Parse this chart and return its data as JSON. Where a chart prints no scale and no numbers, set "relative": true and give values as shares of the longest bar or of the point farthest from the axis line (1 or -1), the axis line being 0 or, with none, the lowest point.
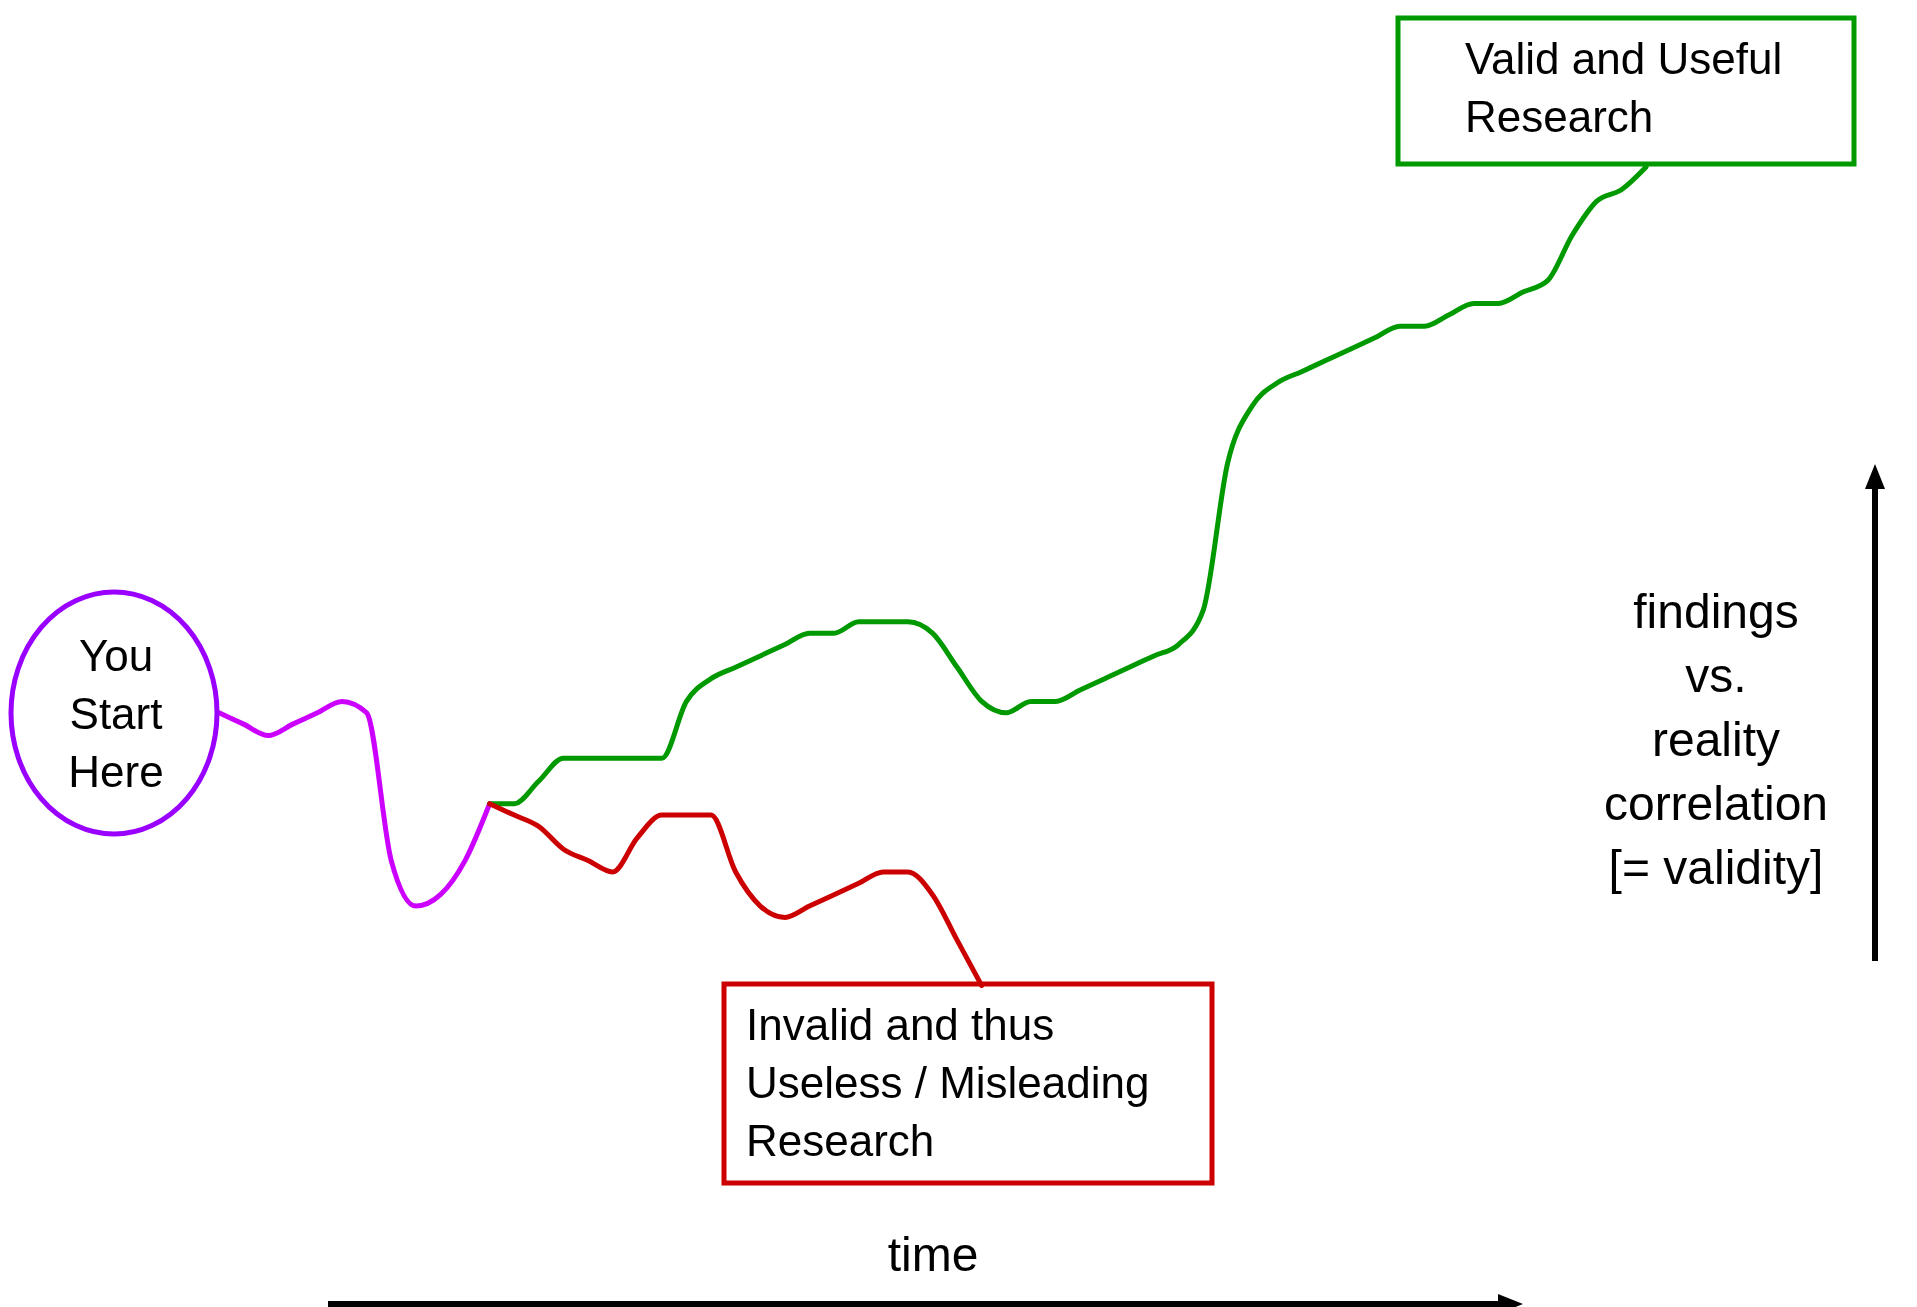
{
  "chart_data": {
    "type": "line",
    "relative": true,
    "xlabel": "time",
    "ylabel": "findings vs. reality correlation [= validity]",
    "categories": [
      null,
      null,
      null,
      null,
      null,
      null,
      null,
      null,
      null,
      null,
      null,
      null,
      null,
      null,
      null,
      null,
      null,
      null,
      null,
      null,
      null,
      null,
      null,
      null,
      null,
      null,
      null,
      null,
      null,
      null,
      null,
      null,
      null,
      null,
      null,
      null,
      null,
      null,
      null,
      null,
      null,
      null,
      null,
      null,
      null,
      null,
      null,
      null,
      null,
      null,
      null,
      null,
      null,
      null,
      null,
      null,
      null,
      null,
      null
    ],
    "series": [
      {
        "color": "#cc00ff",
        "values": [
          0.52,
          0.51,
          0.5,
          0.51,
          0.52,
          0.53,
          0.52,
          0.39,
          0.35,
          0.36,
          0.39,
          0.44,
          null,
          null,
          null,
          null,
          null,
          null,
          null,
          null,
          null,
          null,
          null,
          null,
          null,
          null,
          null,
          null,
          null,
          null,
          null,
          null,
          null,
          null,
          null,
          null,
          null,
          null,
          null,
          null,
          null,
          null,
          null,
          null,
          null,
          null,
          null,
          null,
          null,
          null,
          null,
          null,
          null,
          null,
          null,
          null,
          null,
          null,
          null
        ]
      },
      {
        "color": "#009900",
        "values": [
          null,
          null,
          null,
          null,
          null,
          null,
          null,
          null,
          null,
          null,
          null,
          0.44,
          0.44,
          0.46,
          0.48,
          0.48,
          0.48,
          0.48,
          0.48,
          0.53,
          0.55,
          0.56,
          0.57,
          0.58,
          0.59,
          0.59,
          0.6,
          0.6,
          0.6,
          0.59,
          0.56,
          0.53,
          0.52,
          0.53,
          0.53,
          0.54,
          0.55,
          0.56,
          0.57,
          0.58,
          0.61,
          0.74,
          0.79,
          0.81,
          0.82,
          0.83,
          0.84,
          0.85,
          0.86,
          0.86,
          0.87,
          0.88,
          0.88,
          0.89,
          0.9,
          0.94,
          0.97,
          0.98,
          1
        ]
      },
      {
        "color": "#cc0000",
        "values": [
          null,
          null,
          null,
          null,
          null,
          null,
          null,
          null,
          null,
          null,
          null,
          0.44,
          0.43,
          0.42,
          0.4,
          0.39,
          0.38,
          0.41,
          0.43,
          0.43,
          0.43,
          0.38,
          0.35,
          0.34,
          0.35,
          0.36,
          0.37,
          0.38,
          0.38,
          0.36,
          0.32,
          0.28,
          null,
          null,
          null,
          null,
          null,
          null,
          null,
          null,
          null,
          null,
          null,
          null,
          null,
          null,
          null,
          null,
          null,
          null,
          null,
          null,
          null,
          null,
          null,
          null,
          null,
          null,
          null
        ]
      }
    ],
    "annotations": [
      "You Start Here",
      "Valid and Useful Research",
      "Invalid and thus Useless / Misleading Research"
    ]
  }
}
